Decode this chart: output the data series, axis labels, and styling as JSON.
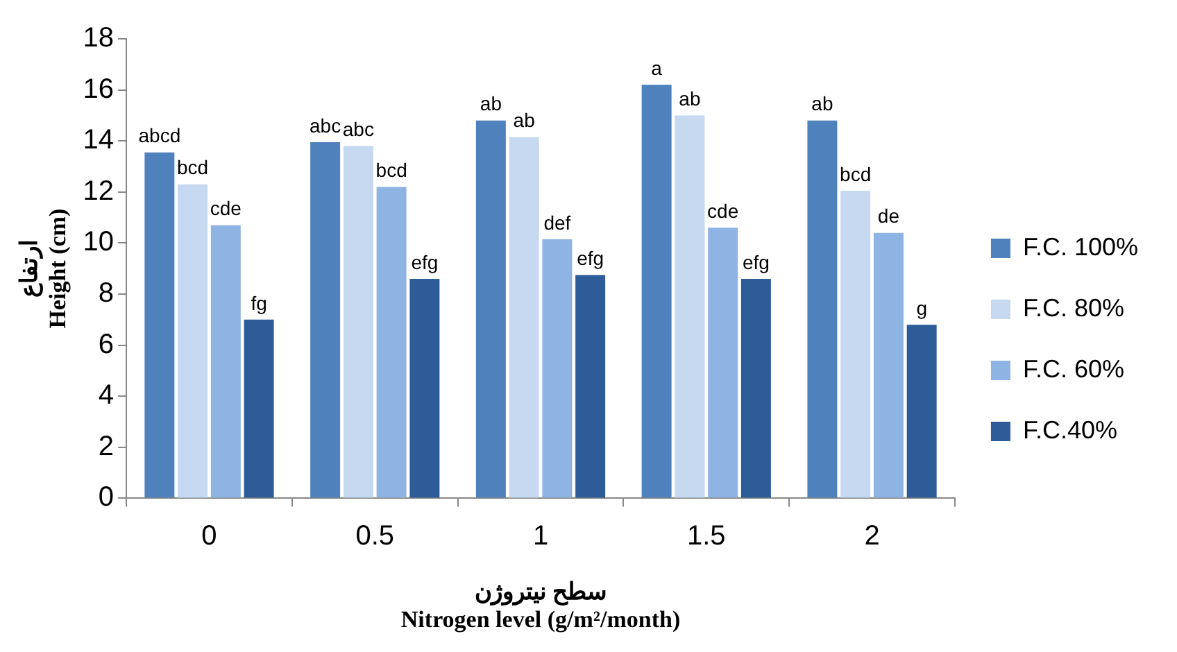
{
  "chart_data": {
    "type": "bar",
    "categories": [
      "0",
      "0.5",
      "1",
      "1.5",
      "2"
    ],
    "series": [
      {
        "name": "F.C. 100%",
        "color": "#4f81bd",
        "values": [
          13.55,
          13.95,
          14.8,
          16.2,
          14.8
        ],
        "value_labels": [
          "abcd",
          "abc",
          "ab",
          "a",
          "ab"
        ]
      },
      {
        "name": "F.C. 80%",
        "color": "#c6d9f1",
        "values": [
          12.3,
          13.8,
          14.15,
          15.0,
          12.05
        ],
        "value_labels": [
          "bcd",
          "abc",
          "ab",
          "ab",
          "bcd"
        ]
      },
      {
        "name": "F.C. 60%",
        "color": "#8eb4e3",
        "values": [
          10.7,
          12.2,
          10.15,
          10.6,
          10.4
        ],
        "value_labels": [
          "cde",
          "bcd",
          "def",
          "cde",
          "de"
        ]
      },
      {
        "name": "F.C.40%",
        "color": "#2e5c99",
        "values": [
          7.0,
          8.6,
          8.75,
          8.6,
          6.8
        ],
        "value_labels": [
          "fg",
          "efg",
          "efg",
          "efg",
          "g"
        ]
      }
    ],
    "ylim": [
      0,
      18
    ],
    "yticks": [
      0,
      2,
      4,
      6,
      8,
      10,
      12,
      14,
      16,
      18
    ],
    "ylabel": "ارتفاع\nHeight (cm)",
    "xlabel": "سطح نیتروژن\nNitrogen level (g/m²/month)",
    "grid": false,
    "legend": "right"
  }
}
